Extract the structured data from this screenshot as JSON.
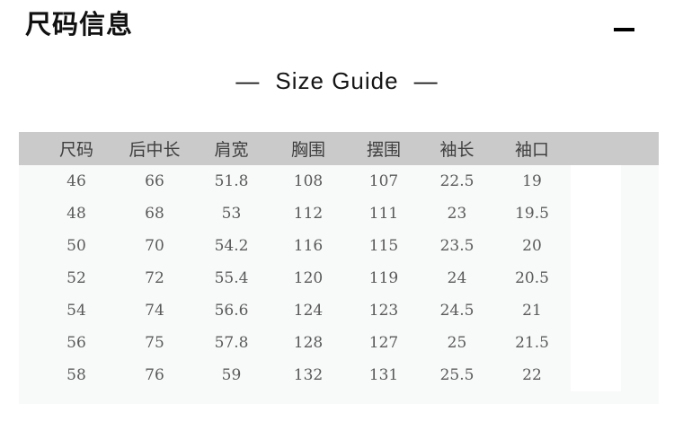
{
  "header": {
    "title": "尺码信息",
    "collapse_icon": "minus"
  },
  "section_title": {
    "dash_left": "—",
    "label": "Size Guide",
    "dash_right": "—"
  },
  "size_table": {
    "columns": [
      "尺码",
      "后中长",
      "肩宽",
      "胸围",
      "摆围",
      "袖长",
      "袖口"
    ],
    "rows": [
      [
        "46",
        "66",
        "51.8",
        "108",
        "107",
        "22.5",
        "19"
      ],
      [
        "48",
        "68",
        "53",
        "112",
        "111",
        "23",
        "19.5"
      ],
      [
        "50",
        "70",
        "54.2",
        "116",
        "115",
        "23.5",
        "20"
      ],
      [
        "52",
        "72",
        "55.4",
        "120",
        "119",
        "24",
        "20.5"
      ],
      [
        "54",
        "74",
        "56.6",
        "124",
        "123",
        "24.5",
        "21"
      ],
      [
        "56",
        "75",
        "57.8",
        "128",
        "127",
        "25",
        "21.5"
      ],
      [
        "58",
        "76",
        "59",
        "132",
        "131",
        "25.5",
        "22"
      ]
    ],
    "colors": {
      "header_bg": "#cacaca",
      "body_bg": "#f8f9f9",
      "header_text": "#3e3e3e",
      "body_text": "#5a5a5a",
      "empty_column_bg": "#ffffff"
    }
  }
}
